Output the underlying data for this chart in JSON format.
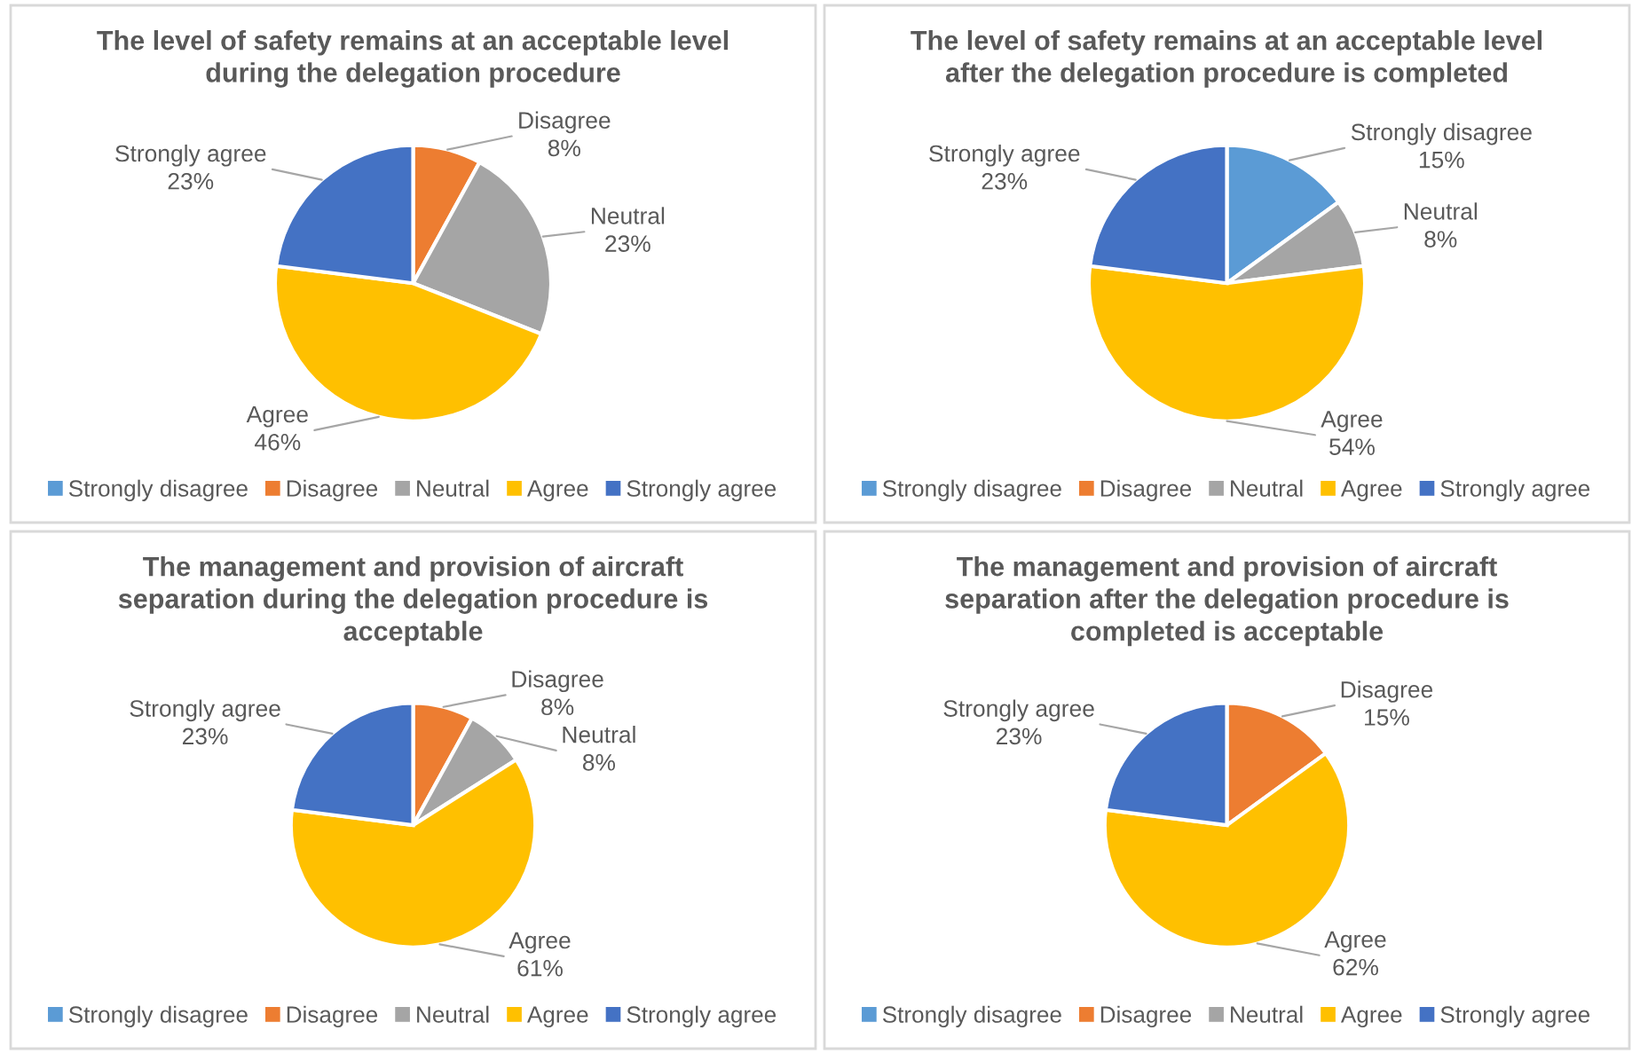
{
  "chart_data": [
    {
      "type": "pie",
      "title": "The level of safety remains at an acceptable level during the delegation procedure",
      "categories": [
        "Strongly disagree",
        "Disagree",
        "Neutral",
        "Agree",
        "Strongly agree"
      ],
      "values": [
        0,
        8,
        23,
        46,
        23
      ],
      "colors": [
        "#5b9bd5",
        "#ed7d31",
        "#a5a5a5",
        "#ffc000",
        "#4472c4"
      ],
      "value_labels": [
        null,
        "8%",
        "23%",
        "46%",
        "23%"
      ],
      "legend": "bottom"
    },
    {
      "type": "pie",
      "title": "The level of safety remains at an acceptable level after the delegation procedure is completed",
      "categories": [
        "Strongly disagree",
        "Disagree",
        "Neutral",
        "Agree",
        "Strongly agree"
      ],
      "values": [
        15,
        0,
        8,
        54,
        23
      ],
      "colors": [
        "#5b9bd5",
        "#ed7d31",
        "#a5a5a5",
        "#ffc000",
        "#4472c4"
      ],
      "value_labels": [
        "15%",
        null,
        "8%",
        "54%",
        "23%"
      ],
      "legend": "bottom"
    },
    {
      "type": "pie",
      "title": "The management and provision of aircraft separation during the delegation procedure is acceptable",
      "categories": [
        "Strongly disagree",
        "Disagree",
        "Neutral",
        "Agree",
        "Strongly agree"
      ],
      "values": [
        0,
        8,
        8,
        61,
        23
      ],
      "colors": [
        "#5b9bd5",
        "#ed7d31",
        "#a5a5a5",
        "#ffc000",
        "#4472c4"
      ],
      "value_labels": [
        null,
        "8%",
        "8%",
        "61%",
        "23%"
      ],
      "legend": "bottom"
    },
    {
      "type": "pie",
      "title": "The management and provision of aircraft separation after the delegation procedure is completed is acceptable",
      "categories": [
        "Strongly disagree",
        "Disagree",
        "Neutral",
        "Agree",
        "Strongly agree"
      ],
      "values": [
        0,
        15,
        0,
        62,
        23
      ],
      "colors": [
        "#5b9bd5",
        "#ed7d31",
        "#a5a5a5",
        "#ffc000",
        "#4472c4"
      ],
      "value_labels": [
        null,
        "15%",
        null,
        "62%",
        "23%"
      ],
      "legend": "bottom"
    }
  ]
}
